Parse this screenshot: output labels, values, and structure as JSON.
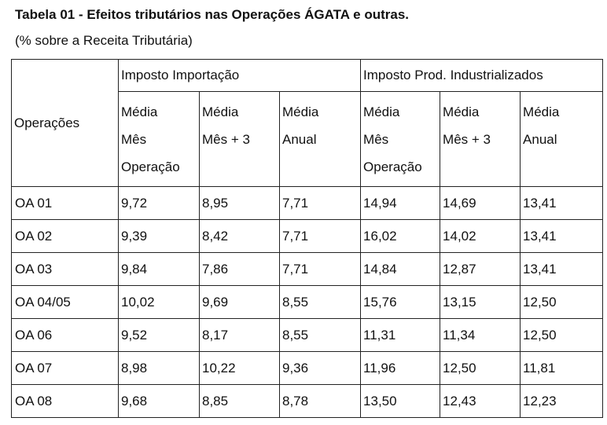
{
  "title": "Tabela 01 - Efeitos tributários nas Operações ÁGATA e outras.",
  "subtitle": "(% sobre a Receita Tributária)",
  "table": {
    "row_header": "Operações",
    "groups": [
      {
        "label": "Imposto Importação",
        "subheaders": [
          {
            "lines": [
              "Média",
              "Mês",
              "Operação"
            ]
          },
          {
            "lines": [
              "Média",
              "Mês + 3"
            ]
          },
          {
            "lines": [
              "Média",
              "Anual"
            ]
          }
        ]
      },
      {
        "label": "Imposto Prod. Industrializados",
        "subheaders": [
          {
            "lines": [
              "Média",
              "Mês",
              "Operação"
            ]
          },
          {
            "lines": [
              "Média",
              "Mês + 3"
            ]
          },
          {
            "lines": [
              "Média",
              "Anual"
            ]
          }
        ]
      }
    ],
    "rows": [
      {
        "op": "OA 01",
        "values": [
          "9,72",
          "8,95",
          "7,71",
          "14,94",
          "14,69",
          "13,41"
        ]
      },
      {
        "op": "OA 02",
        "values": [
          "9,39",
          "8,42",
          "7,71",
          "16,02",
          "14,02",
          "13,41"
        ]
      },
      {
        "op": "OA 03",
        "values": [
          "9,84",
          "7,86",
          "7,71",
          "14,84",
          "12,87",
          "13,41"
        ]
      },
      {
        "op": "OA 04/05",
        "values": [
          "10,02",
          "9,69",
          "8,55",
          "15,76",
          "13,15",
          "12,50"
        ]
      },
      {
        "op": "OA 06",
        "values": [
          "9,52",
          "8,17",
          "8,55",
          "11,31",
          "11,34",
          "12,50"
        ]
      },
      {
        "op": "OA 07",
        "values": [
          "8,98",
          "10,22",
          "9,36",
          "11,96",
          "12,50",
          "11,81"
        ]
      },
      {
        "op": "OA 08",
        "values": [
          "9,68",
          "8,85",
          "8,78",
          "13,50",
          "12,43",
          "12,23"
        ]
      }
    ]
  }
}
